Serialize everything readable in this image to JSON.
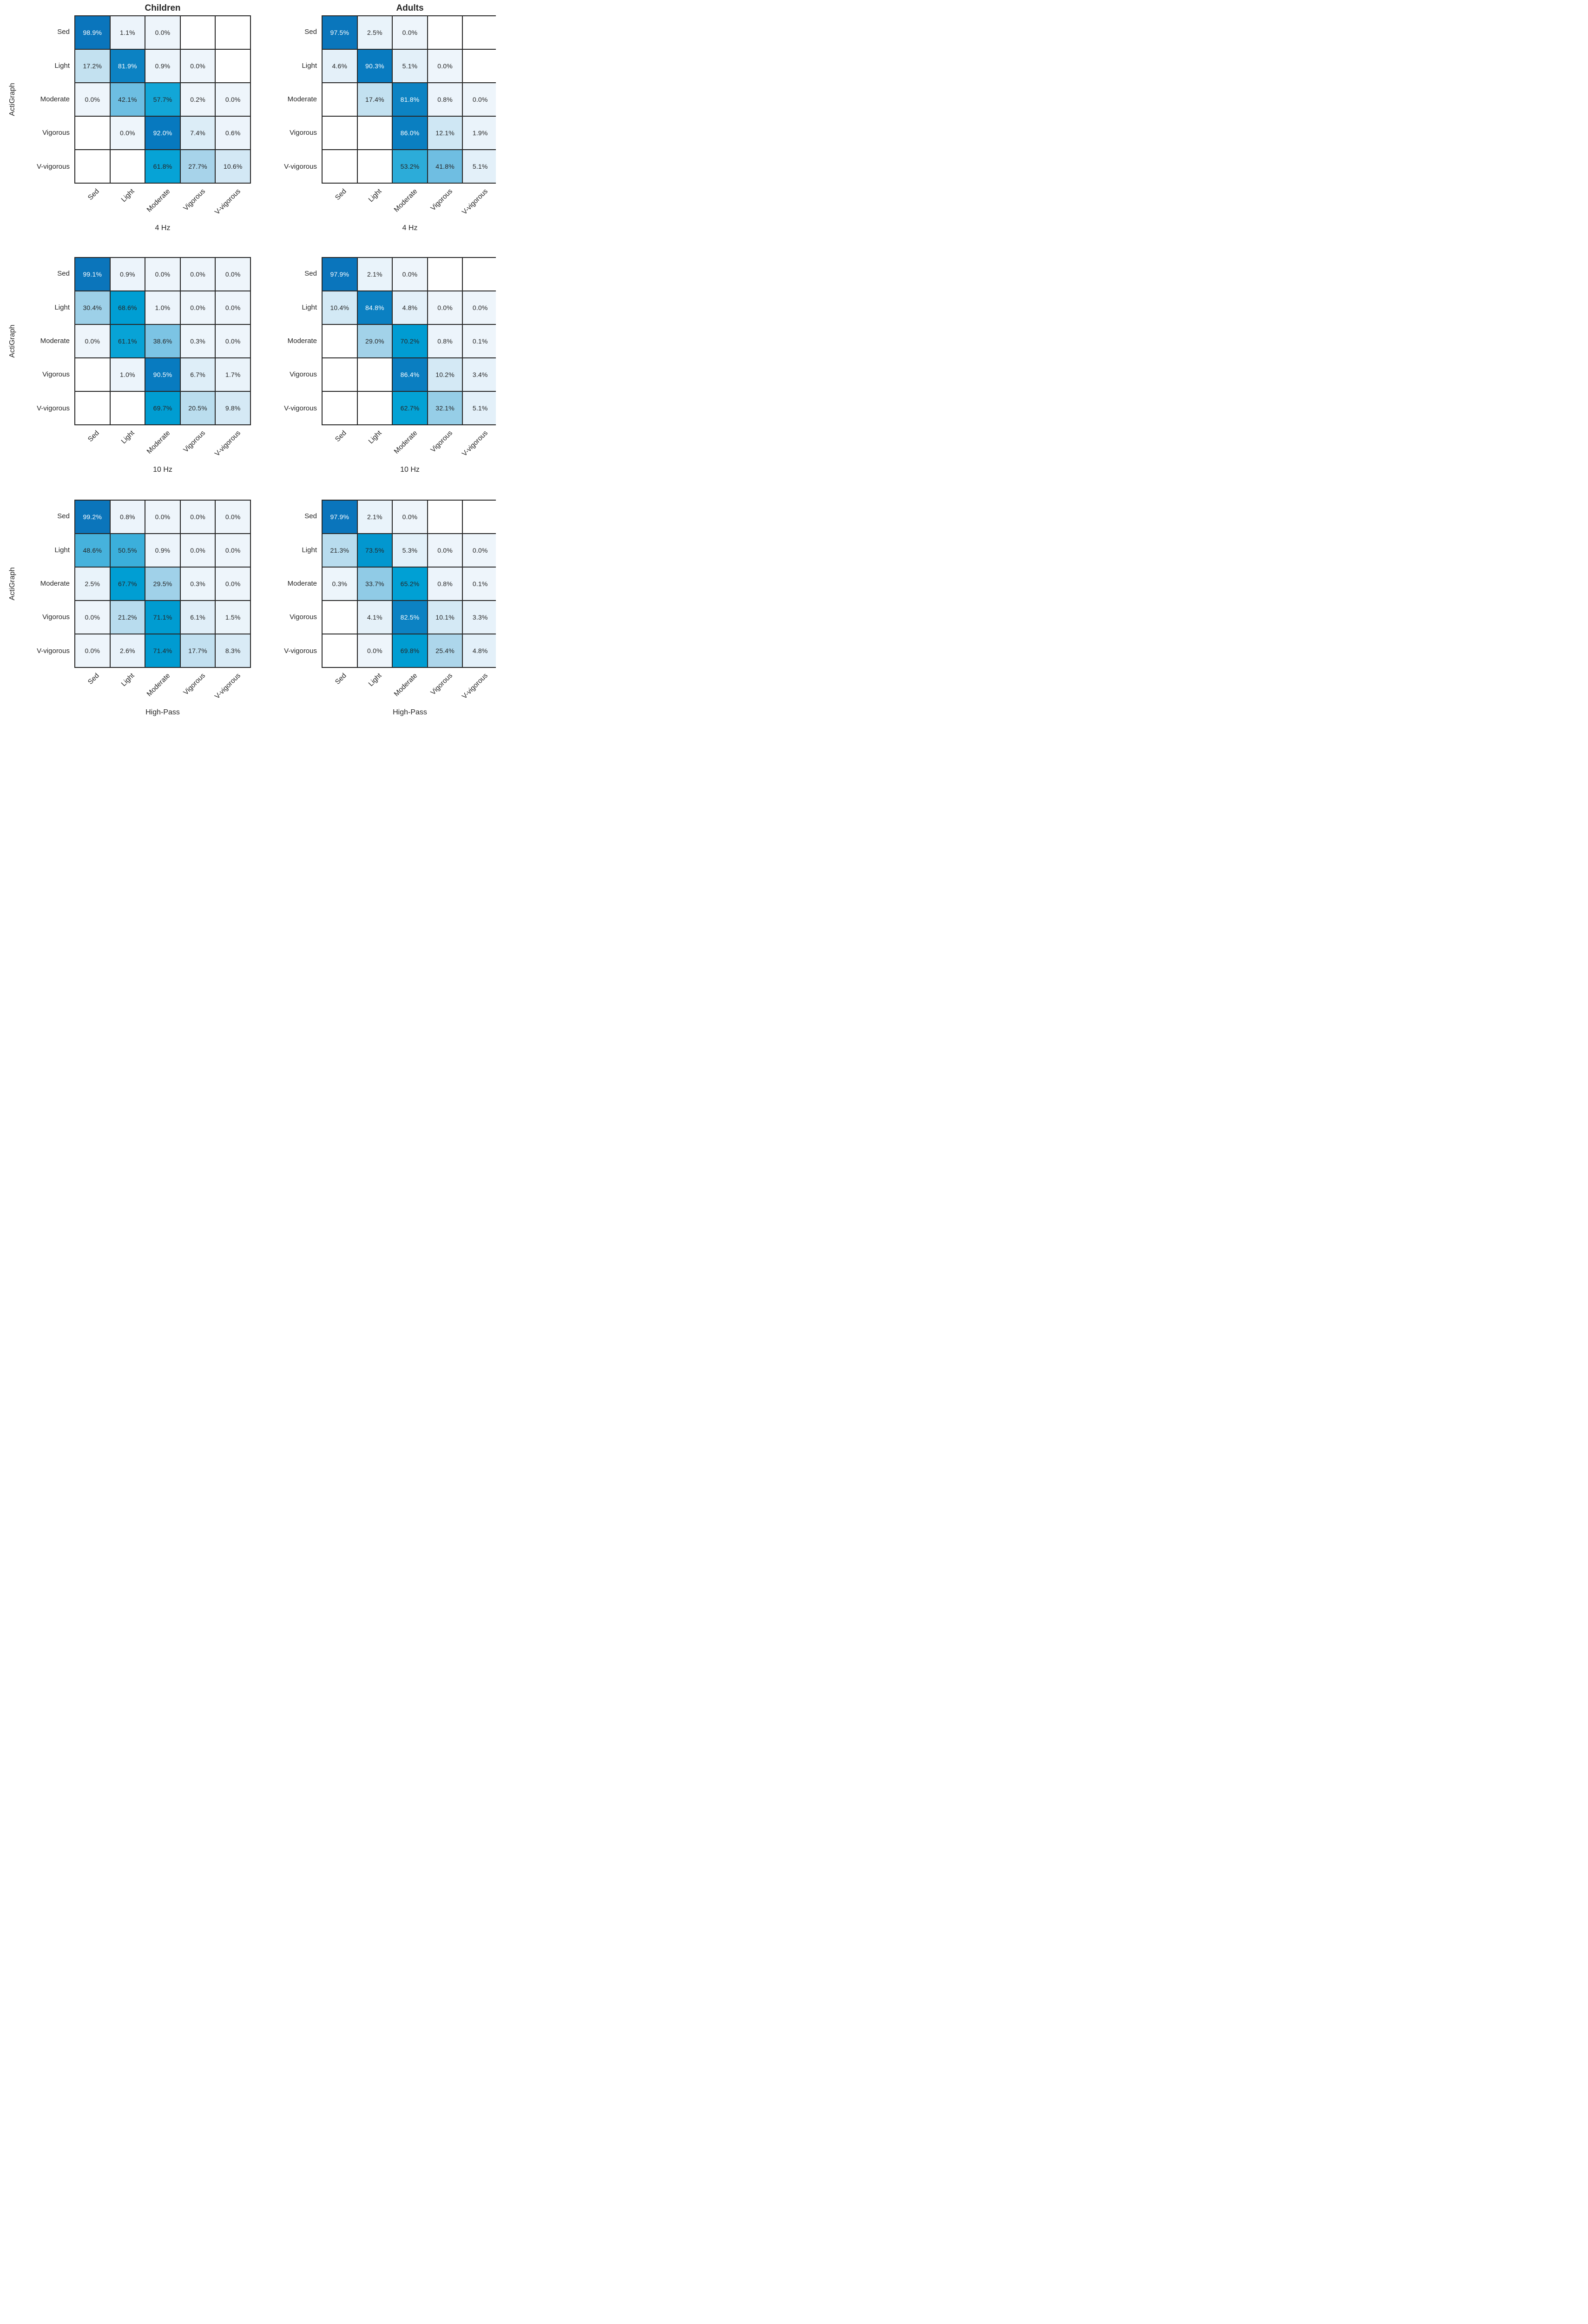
{
  "figure": {
    "column_titles": [
      "Children",
      "Adults"
    ],
    "ylabel": "ActiGraph",
    "xlabels": [
      "4 Hz",
      "10 Hz",
      "High-Pass"
    ],
    "classes": [
      "Sed",
      "Light",
      "Moderate",
      "Vigorous",
      "V-vigorous"
    ]
  },
  "colors": {
    "background": "#ffffff",
    "grid_line": "#262626",
    "text": "#262626",
    "cell_text_light": "#ffffff",
    "blank_cell": "#ffffff",
    "white_text_threshold_pct": 78,
    "colormap_stops": [
      [
        0,
        "#eef5fb"
      ],
      [
        5,
        "#e3f0f9"
      ],
      [
        10,
        "#d4e9f5"
      ],
      [
        17,
        "#c4e1f0"
      ],
      [
        21,
        "#b9dcee"
      ],
      [
        28,
        "#a6d3ea"
      ],
      [
        34,
        "#8fcbe6"
      ],
      [
        42,
        "#6ebee2"
      ],
      [
        50,
        "#3eb0db"
      ],
      [
        58,
        "#10a6d7"
      ],
      [
        64,
        "#00a1d5"
      ],
      [
        72,
        "#009bd1"
      ],
      [
        78,
        "#088cc8"
      ],
      [
        82,
        "#0c82c3"
      ],
      [
        87,
        "#0a7ec1"
      ],
      [
        92,
        "#0779bf"
      ],
      [
        100,
        "#0b74bb"
      ]
    ]
  },
  "chart_data": [
    {
      "type": "heatmap",
      "group": "Children",
      "xlabel": "4 Hz",
      "ylabel": "ActiGraph",
      "x_categories": [
        "Sed",
        "Light",
        "Moderate",
        "Vigorous",
        "V-vigorous"
      ],
      "y_categories": [
        "Sed",
        "Light",
        "Moderate",
        "Vigorous",
        "V-vigorous"
      ],
      "values_pct": [
        [
          98.9,
          1.1,
          0.0,
          null,
          null
        ],
        [
          17.2,
          81.9,
          0.9,
          0.0,
          null
        ],
        [
          0.0,
          42.1,
          57.7,
          0.2,
          0.0
        ],
        [
          null,
          0.0,
          92.0,
          7.4,
          0.6
        ],
        [
          null,
          null,
          61.8,
          27.7,
          10.6
        ]
      ],
      "cells": [
        [
          "98.9%",
          "1.1%",
          "0.0%",
          "",
          ""
        ],
        [
          "17.2%",
          "81.9%",
          "0.9%",
          "0.0%",
          ""
        ],
        [
          "0.0%",
          "42.1%",
          "57.7%",
          "0.2%",
          "0.0%"
        ],
        [
          "",
          "0.0%",
          "92.0%",
          "7.4%",
          "0.6%"
        ],
        [
          "",
          "",
          "61.8%",
          "27.7%",
          "10.6%"
        ]
      ]
    },
    {
      "type": "heatmap",
      "group": "Adults",
      "xlabel": "4 Hz",
      "ylabel": "ActiGraph",
      "x_categories": [
        "Sed",
        "Light",
        "Moderate",
        "Vigorous",
        "V-vigorous"
      ],
      "y_categories": [
        "Sed",
        "Light",
        "Moderate",
        "Vigorous",
        "V-vigorous"
      ],
      "values_pct": [
        [
          97.5,
          2.5,
          0.0,
          null,
          null
        ],
        [
          4.6,
          90.3,
          5.1,
          0.0,
          null
        ],
        [
          null,
          17.4,
          81.8,
          0.8,
          0.0
        ],
        [
          null,
          null,
          86.0,
          12.1,
          1.9
        ],
        [
          null,
          null,
          53.2,
          41.8,
          5.1
        ]
      ],
      "cells": [
        [
          "97.5%",
          "2.5%",
          "0.0%",
          "",
          ""
        ],
        [
          "4.6%",
          "90.3%",
          "5.1%",
          "0.0%",
          ""
        ],
        [
          "",
          "17.4%",
          "81.8%",
          "0.8%",
          "0.0%"
        ],
        [
          "",
          "",
          "86.0%",
          "12.1%",
          "1.9%"
        ],
        [
          "",
          "",
          "53.2%",
          "41.8%",
          "5.1%"
        ]
      ]
    },
    {
      "type": "heatmap",
      "group": "Children",
      "xlabel": "10 Hz",
      "ylabel": "ActiGraph",
      "x_categories": [
        "Sed",
        "Light",
        "Moderate",
        "Vigorous",
        "V-vigorous"
      ],
      "y_categories": [
        "Sed",
        "Light",
        "Moderate",
        "Vigorous",
        "V-vigorous"
      ],
      "values_pct": [
        [
          99.1,
          0.9,
          0.0,
          0.0,
          0.0
        ],
        [
          30.4,
          68.6,
          1.0,
          0.0,
          0.0
        ],
        [
          0.0,
          61.1,
          38.6,
          0.3,
          0.0
        ],
        [
          null,
          1.0,
          90.5,
          6.7,
          1.7
        ],
        [
          null,
          null,
          69.7,
          20.5,
          9.8
        ]
      ],
      "cells": [
        [
          "99.1%",
          "0.9%",
          "0.0%",
          "0.0%",
          "0.0%"
        ],
        [
          "30.4%",
          "68.6%",
          "1.0%",
          "0.0%",
          "0.0%"
        ],
        [
          "0.0%",
          "61.1%",
          "38.6%",
          "0.3%",
          "0.0%"
        ],
        [
          "",
          "1.0%",
          "90.5%",
          "6.7%",
          "1.7%"
        ],
        [
          "",
          "",
          "69.7%",
          "20.5%",
          "9.8%"
        ]
      ]
    },
    {
      "type": "heatmap",
      "group": "Adults",
      "xlabel": "10 Hz",
      "ylabel": "ActiGraph",
      "x_categories": [
        "Sed",
        "Light",
        "Moderate",
        "Vigorous",
        "V-vigorous"
      ],
      "y_categories": [
        "Sed",
        "Light",
        "Moderate",
        "Vigorous",
        "V-vigorous"
      ],
      "values_pct": [
        [
          97.9,
          2.1,
          0.0,
          null,
          null
        ],
        [
          10.4,
          84.8,
          4.8,
          0.0,
          0.0
        ],
        [
          null,
          29.0,
          70.2,
          0.8,
          0.1
        ],
        [
          null,
          null,
          86.4,
          10.2,
          3.4
        ],
        [
          null,
          null,
          62.7,
          32.1,
          5.1
        ]
      ],
      "cells": [
        [
          "97.9%",
          "2.1%",
          "0.0%",
          "",
          ""
        ],
        [
          "10.4%",
          "84.8%",
          "4.8%",
          "0.0%",
          "0.0%"
        ],
        [
          "",
          "29.0%",
          "70.2%",
          "0.8%",
          "0.1%"
        ],
        [
          "",
          "",
          "86.4%",
          "10.2%",
          "3.4%"
        ],
        [
          "",
          "",
          "62.7%",
          "32.1%",
          "5.1%"
        ]
      ]
    },
    {
      "type": "heatmap",
      "group": "Children",
      "xlabel": "High-Pass",
      "ylabel": "ActiGraph",
      "x_categories": [
        "Sed",
        "Light",
        "Moderate",
        "Vigorous",
        "V-vigorous"
      ],
      "y_categories": [
        "Sed",
        "Light",
        "Moderate",
        "Vigorous",
        "V-vigorous"
      ],
      "values_pct": [
        [
          99.2,
          0.8,
          0.0,
          0.0,
          0.0
        ],
        [
          48.6,
          50.5,
          0.9,
          0.0,
          0.0
        ],
        [
          2.5,
          67.7,
          29.5,
          0.3,
          0.0
        ],
        [
          0.0,
          21.2,
          71.1,
          6.1,
          1.5
        ],
        [
          0.0,
          2.6,
          71.4,
          17.7,
          8.3
        ]
      ],
      "cells": [
        [
          "99.2%",
          "0.8%",
          "0.0%",
          "0.0%",
          "0.0%"
        ],
        [
          "48.6%",
          "50.5%",
          "0.9%",
          "0.0%",
          "0.0%"
        ],
        [
          "2.5%",
          "67.7%",
          "29.5%",
          "0.3%",
          "0.0%"
        ],
        [
          "0.0%",
          "21.2%",
          "71.1%",
          "6.1%",
          "1.5%"
        ],
        [
          "0.0%",
          "2.6%",
          "71.4%",
          "17.7%",
          "8.3%"
        ]
      ]
    },
    {
      "type": "heatmap",
      "group": "Adults",
      "xlabel": "High-Pass",
      "ylabel": "ActiGraph",
      "x_categories": [
        "Sed",
        "Light",
        "Moderate",
        "Vigorous",
        "V-vigorous"
      ],
      "y_categories": [
        "Sed",
        "Light",
        "Moderate",
        "Vigorous",
        "V-vigorous"
      ],
      "values_pct": [
        [
          97.9,
          2.1,
          0.0,
          null,
          null
        ],
        [
          21.3,
          73.5,
          5.3,
          0.0,
          0.0
        ],
        [
          0.3,
          33.7,
          65.2,
          0.8,
          0.1
        ],
        [
          null,
          4.1,
          82.5,
          10.1,
          3.3
        ],
        [
          null,
          0.0,
          69.8,
          25.4,
          4.8
        ]
      ],
      "cells": [
        [
          "97.9%",
          "2.1%",
          "0.0%",
          "",
          ""
        ],
        [
          "21.3%",
          "73.5%",
          "5.3%",
          "0.0%",
          "0.0%"
        ],
        [
          "0.3%",
          "33.7%",
          "65.2%",
          "0.8%",
          "0.1%"
        ],
        [
          "",
          "4.1%",
          "82.5%",
          "10.1%",
          "3.3%"
        ],
        [
          "",
          "0.0%",
          "69.8%",
          "25.4%",
          "4.8%"
        ]
      ]
    }
  ]
}
